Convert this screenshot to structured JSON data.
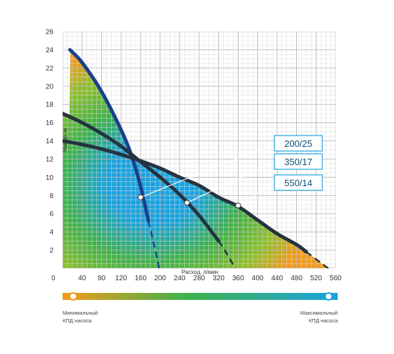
{
  "chart_data": {
    "type": "line",
    "xlabel": "Расход, л/мин",
    "ylabel": "Напор, м",
    "xlim": [
      0,
      560
    ],
    "ylim": [
      0,
      26
    ],
    "x_ticks": [
      "40",
      "80",
      "120",
      "160",
      "200",
      "240",
      "280",
      "320",
      "360",
      "400",
      "440",
      "480",
      "520",
      "560"
    ],
    "y_ticks": [
      "2",
      "4",
      "6",
      "8",
      "10",
      "12",
      "14",
      "16",
      "18",
      "20",
      "22",
      "24",
      "26"
    ],
    "origin_label": "0",
    "grid": true,
    "series": [
      {
        "name": "200/25",
        "color": "#1a3f8c",
        "points": [
          [
            15,
            24.0
          ],
          [
            40,
            22.6
          ],
          [
            80,
            19.4
          ],
          [
            120,
            15.2
          ],
          [
            140,
            12.6
          ],
          [
            160,
            9.0
          ],
          [
            176,
            5.2
          ]
        ],
        "dashed_points": [
          [
            176,
            5.2
          ],
          [
            188,
            2.5
          ],
          [
            198,
            0
          ]
        ],
        "marker": [
          160,
          7.8
        ]
      },
      {
        "name": "350/17",
        "color": "#253340",
        "points": [
          [
            0,
            17.0
          ],
          [
            40,
            16.0
          ],
          [
            80,
            14.8
          ],
          [
            120,
            13.4
          ],
          [
            160,
            11.7
          ],
          [
            200,
            10.0
          ],
          [
            240,
            8.1
          ],
          [
            280,
            5.8
          ],
          [
            320,
            3.0
          ]
        ],
        "dashed_points": [
          [
            320,
            3.0
          ],
          [
            338,
            1.5
          ],
          [
            354,
            0
          ]
        ],
        "marker": [
          255,
          7.2
        ]
      },
      {
        "name": "550/14",
        "color": "#253340",
        "points": [
          [
            0,
            14.0
          ],
          [
            40,
            13.6
          ],
          [
            80,
            13.1
          ],
          [
            120,
            12.5
          ],
          [
            160,
            11.8
          ],
          [
            200,
            11.0
          ],
          [
            240,
            10.0
          ],
          [
            280,
            9.1
          ],
          [
            320,
            7.8
          ],
          [
            360,
            6.8
          ],
          [
            400,
            5.3
          ],
          [
            440,
            3.8
          ],
          [
            480,
            2.6
          ],
          [
            500,
            1.8
          ]
        ],
        "dashed_points": [
          [
            500,
            1.8
          ],
          [
            530,
            0.6
          ],
          [
            545,
            0
          ]
        ],
        "marker": [
          360,
          6.9
        ]
      }
    ],
    "legend": {
      "min_label_line1": "Минимальный",
      "min_label_line2": "КПД насоса",
      "max_label_line1": "Максимальный",
      "max_label_line2": "КПД насоса",
      "color_min": "#f39a1c",
      "color_mid": "#3fb24a",
      "color_max": "#1aa3e0"
    }
  }
}
